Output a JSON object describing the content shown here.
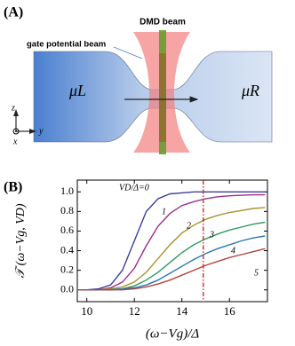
{
  "panel_a": {
    "label": "(A)",
    "gate_beam": "gate potential beam",
    "dmd_beam": "DMD beam",
    "left_reservoir": "μL",
    "right_reservoir": "μR",
    "axis_z": "z",
    "axis_y": "y",
    "axis_x": "x"
  },
  "panel_b_label": "(B)",
  "chart_data": {
    "type": "line",
    "y_label": "𝒯 (ω−Vg, VD)",
    "x_label": "(ω−Vg)/Δ",
    "x": [
      9.6,
      10,
      10.5,
      11,
      11.5,
      12,
      12.5,
      13,
      13.5,
      14,
      14.5,
      15,
      15.5,
      16,
      16.5,
      17,
      17.5
    ],
    "series": [
      {
        "name": "VD/Δ=0",
        "color": "#3c3f9e",
        "values": [
          0,
          0,
          0.01,
          0.05,
          0.2,
          0.5,
          0.8,
          0.93,
          0.98,
          0.99,
          1,
          1,
          1,
          1,
          1,
          1,
          1
        ]
      },
      {
        "name": "1",
        "color": "#9b2f8a",
        "values": [
          0,
          0,
          0,
          0.02,
          0.08,
          0.22,
          0.45,
          0.65,
          0.78,
          0.86,
          0.9,
          0.93,
          0.95,
          0.96,
          0.965,
          0.97,
          0.97
        ]
      },
      {
        "name": "2",
        "color": "#a8922e",
        "values": [
          0,
          0,
          0,
          0.01,
          0.03,
          0.08,
          0.18,
          0.32,
          0.46,
          0.58,
          0.66,
          0.72,
          0.76,
          0.79,
          0.81,
          0.83,
          0.84
        ]
      },
      {
        "name": "3",
        "color": "#2f9a64",
        "values": [
          0,
          0,
          0,
          0,
          0.01,
          0.04,
          0.1,
          0.18,
          0.28,
          0.38,
          0.46,
          0.52,
          0.57,
          0.61,
          0.64,
          0.67,
          0.69
        ]
      },
      {
        "name": "4",
        "color": "#2a78b0",
        "values": [
          0,
          0,
          0,
          0,
          0.01,
          0.02,
          0.05,
          0.1,
          0.17,
          0.24,
          0.31,
          0.37,
          0.42,
          0.46,
          0.5,
          0.53,
          0.55
        ]
      },
      {
        "name": "5",
        "color": "#b5443a",
        "values": [
          0,
          0,
          0,
          0,
          0,
          0.01,
          0.03,
          0.06,
          0.1,
          0.15,
          0.2,
          0.25,
          0.29,
          0.33,
          0.36,
          0.39,
          0.42
        ]
      }
    ],
    "vline_x": 14.9,
    "vline_color": "#d01c1c",
    "xlim": [
      9.6,
      17.6
    ],
    "ylim": [
      -0.12,
      1.12
    ],
    "xticks": [
      10,
      12,
      14,
      16
    ],
    "yticks": [
      {
        "value": 0,
        "label": "0.0"
      },
      {
        "value": 0.2,
        "label": "0.2"
      },
      {
        "value": 0.4,
        "label": "0.4"
      },
      {
        "value": 0.6,
        "label": "0.6"
      },
      {
        "value": 0.8,
        "label": "0.8"
      },
      {
        "value": 1,
        "label": "1.0"
      }
    ]
  }
}
